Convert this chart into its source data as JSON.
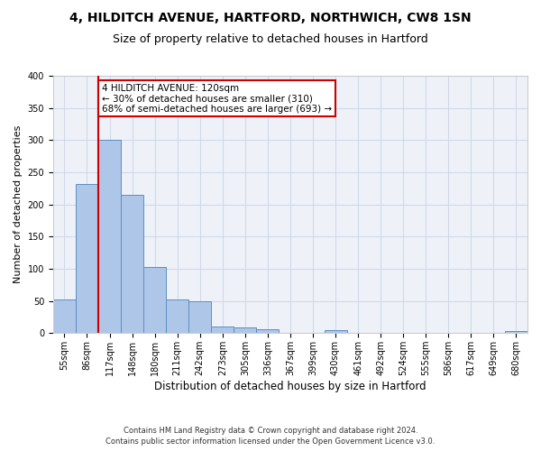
{
  "title1": "4, HILDITCH AVENUE, HARTFORD, NORTHWICH, CW8 1SN",
  "title2": "Size of property relative to detached houses in Hartford",
  "xlabel": "Distribution of detached houses by size in Hartford",
  "ylabel": "Number of detached properties",
  "categories": [
    "55sqm",
    "86sqm",
    "117sqm",
    "148sqm",
    "180sqm",
    "211sqm",
    "242sqm",
    "273sqm",
    "305sqm",
    "336sqm",
    "367sqm",
    "399sqm",
    "430sqm",
    "461sqm",
    "492sqm",
    "524sqm",
    "555sqm",
    "586sqm",
    "617sqm",
    "649sqm",
    "680sqm"
  ],
  "values": [
    53,
    232,
    300,
    215,
    103,
    52,
    50,
    10,
    9,
    6,
    0,
    0,
    5,
    0,
    0,
    0,
    0,
    0,
    0,
    0,
    3
  ],
  "bar_color": "#aec6e8",
  "bar_edge_color": "#5a8fc3",
  "vline_color": "#cc0000",
  "vline_index": 1.5,
  "annotation_text": "4 HILDITCH AVENUE: 120sqm\n← 30% of detached houses are smaller (310)\n68% of semi-detached houses are larger (693) →",
  "annotation_box_color": "#ffffff",
  "annotation_box_edge_color": "#cc0000",
  "ylim": [
    0,
    400
  ],
  "yticks": [
    0,
    50,
    100,
    150,
    200,
    250,
    300,
    350,
    400
  ],
  "grid_color": "#d0d8e8",
  "bg_color": "#eef2f8",
  "footer_line1": "Contains HM Land Registry data © Crown copyright and database right 2024.",
  "footer_line2": "Contains public sector information licensed under the Open Government Licence v3.0.",
  "title1_fontsize": 10,
  "title2_fontsize": 9,
  "xlabel_fontsize": 8.5,
  "ylabel_fontsize": 8,
  "tick_fontsize": 7,
  "footer_fontsize": 6,
  "annot_fontsize": 7.5
}
